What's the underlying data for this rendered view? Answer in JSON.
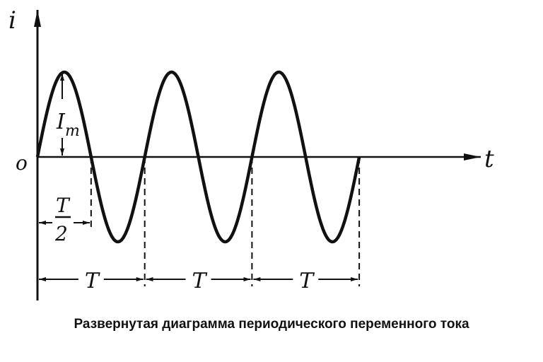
{
  "labels": {
    "current": "i",
    "origin": "o",
    "time": "t",
    "amplitude_main": "I",
    "amplitude_sub": "m",
    "half_period_num": "T",
    "half_period_den": "2",
    "period": "T"
  },
  "periods_shown": 3,
  "caption": "Развернутая диаграмма периодического переменного тока"
}
